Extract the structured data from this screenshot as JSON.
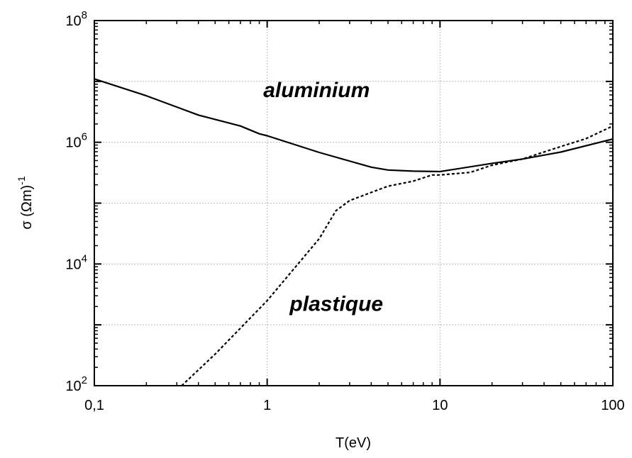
{
  "chart_data": {
    "type": "line",
    "title": "",
    "xlabel": "T(eV)",
    "ylabel": "σ (Ωm)",
    "ylabel_exp": "-1",
    "x_scale": "log",
    "y_scale": "log",
    "xlim": [
      0.1,
      100
    ],
    "ylim": [
      100,
      100000000
    ],
    "grid": true,
    "x_ticks": [
      {
        "value": 0.1,
        "label": "0,1"
      },
      {
        "value": 1,
        "label": "1"
      },
      {
        "value": 10,
        "label": "10"
      },
      {
        "value": 100,
        "label": "100"
      }
    ],
    "y_ticks": [
      {
        "value": 100,
        "base": "10",
        "exp": "2"
      },
      {
        "value": 10000,
        "base": "10",
        "exp": "4"
      },
      {
        "value": 1000000,
        "base": "10",
        "exp": "6"
      },
      {
        "value": 100000000,
        "base": "10",
        "exp": "8"
      }
    ],
    "series": [
      {
        "name": "aluminium",
        "style": "solid",
        "color": "#000000",
        "x": [
          0.1,
          0.2,
          0.4,
          0.7,
          0.9,
          1,
          2,
          4,
          5,
          7,
          10,
          20,
          30,
          50,
          100
        ],
        "y": [
          11000000,
          5800000,
          2800000,
          1850000,
          1380000,
          1280000,
          680000,
          390000,
          350000,
          335000,
          330000,
          450000,
          530000,
          690000,
          1130000
        ]
      },
      {
        "name": "plastique",
        "style": "dashed",
        "color": "#000000",
        "x": [
          0.32,
          0.5,
          1,
          2,
          2.5,
          3,
          4,
          5,
          7,
          9,
          10,
          15,
          20,
          30,
          50,
          70,
          100
        ],
        "y": [
          100,
          330,
          2500,
          26000,
          75000,
          110000,
          150000,
          190000,
          230000,
          290000,
          290000,
          320000,
          420000,
          530000,
          850000,
          1150000,
          1850000
        ]
      }
    ],
    "annotations": [
      {
        "text": "aluminium",
        "x": 0.95,
        "y": 5500000
      },
      {
        "text": "plastique",
        "x": 1.35,
        "y": 1700
      }
    ]
  }
}
